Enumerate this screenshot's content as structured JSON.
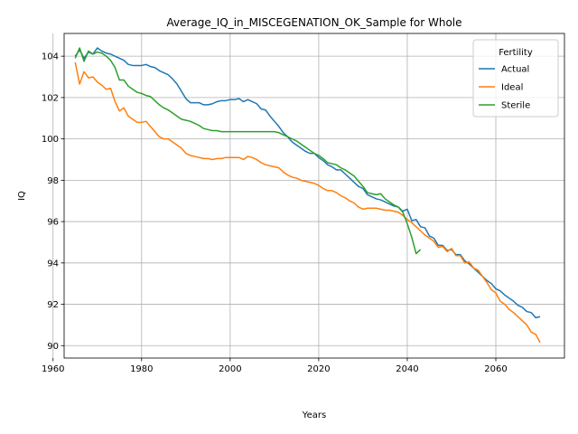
{
  "chart_data": {
    "type": "line",
    "title": "Average_IQ_in_MISCEGENATION_OK_Sample for Whole",
    "xlabel": "Years",
    "ylabel": "IQ",
    "xlim": [
      1962.5,
      2075.5
    ],
    "ylim": [
      89.4,
      105.1
    ],
    "xticks": [
      1960,
      1980,
      2000,
      2020,
      2040,
      2060
    ],
    "yticks": [
      90,
      92,
      94,
      96,
      98,
      100,
      102,
      104
    ],
    "grid": true,
    "legend": {
      "title": "Fertility",
      "placement": "top-right"
    },
    "series": [
      {
        "name": "Actual",
        "color": "#1f77b4",
        "x": [
          1965,
          1966,
          1967,
          1968,
          1969,
          1970,
          1971,
          1972,
          1973,
          1974,
          1975,
          1976,
          1977,
          1978,
          1979,
          1980,
          1981,
          1982,
          1983,
          1984,
          1985,
          1986,
          1987,
          1988,
          1989,
          1990,
          1991,
          1992,
          1993,
          1994,
          1995,
          1996,
          1997,
          1998,
          1999,
          2000,
          2001,
          2002,
          2003,
          2004,
          2005,
          2006,
          2007,
          2008,
          2009,
          2010,
          2011,
          2012,
          2013,
          2014,
          2015,
          2016,
          2017,
          2018,
          2019,
          2020,
          2021,
          2022,
          2023,
          2024,
          2025,
          2026,
          2027,
          2028,
          2029,
          2030,
          2031,
          2032,
          2033,
          2034,
          2035,
          2036,
          2037,
          2038,
          2039,
          2040,
          2041,
          2042,
          2043,
          2044,
          2045,
          2046,
          2047,
          2048,
          2049,
          2050,
          2051,
          2052,
          2053,
          2054,
          2055,
          2056,
          2057,
          2058,
          2059,
          2060,
          2061,
          2062,
          2063,
          2064,
          2065,
          2066,
          2067,
          2068,
          2069,
          2070
        ],
        "y": [
          104.0,
          104.3,
          103.9,
          104.2,
          104.1,
          104.4,
          104.25,
          104.15,
          104.1,
          104.0,
          103.9,
          103.8,
          103.6,
          103.55,
          103.55,
          103.55,
          103.6,
          103.5,
          103.45,
          103.3,
          103.2,
          103.1,
          102.9,
          102.65,
          102.3,
          101.95,
          101.75,
          101.75,
          101.75,
          101.65,
          101.65,
          101.7,
          101.8,
          101.85,
          101.85,
          101.9,
          101.9,
          101.95,
          101.8,
          101.9,
          101.8,
          101.7,
          101.45,
          101.4,
          101.1,
          100.85,
          100.6,
          100.3,
          100.1,
          99.85,
          99.7,
          99.55,
          99.4,
          99.3,
          99.3,
          99.1,
          98.95,
          98.75,
          98.65,
          98.5,
          98.5,
          98.3,
          98.1,
          97.9,
          97.7,
          97.6,
          97.3,
          97.2,
          97.1,
          97.05,
          96.95,
          96.85,
          96.75,
          96.7,
          96.5,
          96.6,
          96.05,
          96.1,
          95.75,
          95.7,
          95.3,
          95.2,
          94.85,
          94.85,
          94.6,
          94.65,
          94.4,
          94.4,
          94.1,
          93.95,
          93.75,
          93.55,
          93.35,
          93.15,
          93.0,
          92.75,
          92.65,
          92.45,
          92.3,
          92.15,
          91.95,
          91.85,
          91.65,
          91.6,
          91.35,
          91.4
        ]
      },
      {
        "name": "Ideal",
        "color": "#ff7f0e",
        "x": [
          1965,
          1966,
          1967,
          1968,
          1969,
          1970,
          1971,
          1972,
          1973,
          1974,
          1975,
          1976,
          1977,
          1978,
          1979,
          1980,
          1981,
          1982,
          1983,
          1984,
          1985,
          1986,
          1987,
          1988,
          1989,
          1990,
          1991,
          1992,
          1993,
          1994,
          1995,
          1996,
          1997,
          1998,
          1999,
          2000,
          2001,
          2002,
          2003,
          2004,
          2005,
          2006,
          2007,
          2008,
          2009,
          2010,
          2011,
          2012,
          2013,
          2014,
          2015,
          2016,
          2017,
          2018,
          2019,
          2020,
          2021,
          2022,
          2023,
          2024,
          2025,
          2026,
          2027,
          2028,
          2029,
          2030,
          2031,
          2032,
          2033,
          2034,
          2035,
          2036,
          2037,
          2038,
          2039,
          2040,
          2041,
          2042,
          2043,
          2044,
          2045,
          2046,
          2047,
          2048,
          2049,
          2050,
          2051,
          2052,
          2053,
          2054,
          2055,
          2056,
          2057,
          2058,
          2059,
          2060,
          2061,
          2062,
          2063,
          2064,
          2065,
          2066,
          2067,
          2068,
          2069,
          2070
        ],
        "y": [
          103.7,
          102.65,
          103.25,
          102.95,
          103.0,
          102.75,
          102.6,
          102.4,
          102.45,
          101.8,
          101.35,
          101.5,
          101.1,
          100.95,
          100.8,
          100.8,
          100.85,
          100.6,
          100.35,
          100.1,
          100.0,
          100.0,
          99.85,
          99.7,
          99.55,
          99.3,
          99.2,
          99.15,
          99.1,
          99.05,
          99.05,
          99.0,
          99.05,
          99.05,
          99.1,
          99.1,
          99.1,
          99.1,
          99.0,
          99.15,
          99.1,
          99.0,
          98.85,
          98.75,
          98.7,
          98.65,
          98.6,
          98.4,
          98.25,
          98.15,
          98.1,
          98.0,
          97.95,
          97.9,
          97.85,
          97.75,
          97.6,
          97.5,
          97.5,
          97.4,
          97.25,
          97.15,
          97.0,
          96.9,
          96.7,
          96.6,
          96.65,
          96.65,
          96.65,
          96.6,
          96.55,
          96.55,
          96.5,
          96.45,
          96.3,
          96.1,
          95.95,
          95.75,
          95.55,
          95.35,
          95.2,
          95.05,
          94.75,
          94.8,
          94.55,
          94.7,
          94.35,
          94.35,
          94.0,
          94.05,
          93.75,
          93.65,
          93.35,
          93.05,
          92.7,
          92.55,
          92.15,
          92.0,
          91.75,
          91.6,
          91.4,
          91.2,
          91.0,
          90.65,
          90.55,
          90.15
        ]
      },
      {
        "name": "Sterile",
        "color": "#2ca02c",
        "x": [
          1965,
          1966,
          1967,
          1968,
          1969,
          1970,
          1971,
          1972,
          1973,
          1974,
          1975,
          1976,
          1977,
          1978,
          1979,
          1980,
          1981,
          1982,
          1983,
          1984,
          1985,
          1986,
          1987,
          1988,
          1989,
          1990,
          1991,
          1992,
          1993,
          1994,
          1995,
          1996,
          1997,
          1998,
          1999,
          2000,
          2001,
          2002,
          2003,
          2004,
          2005,
          2006,
          2007,
          2008,
          2009,
          2010,
          2011,
          2012,
          2013,
          2014,
          2015,
          2016,
          2017,
          2018,
          2019,
          2020,
          2021,
          2022,
          2023,
          2024,
          2025,
          2026,
          2027,
          2028,
          2029,
          2030,
          2031,
          2032,
          2033,
          2034,
          2035,
          2036,
          2037,
          2038,
          2039,
          2040,
          2041,
          2042,
          2043
        ],
        "y": [
          103.9,
          104.4,
          103.75,
          104.25,
          104.1,
          104.2,
          104.15,
          104.0,
          103.8,
          103.45,
          102.85,
          102.85,
          102.55,
          102.4,
          102.25,
          102.2,
          102.1,
          102.05,
          101.85,
          101.65,
          101.5,
          101.4,
          101.25,
          101.1,
          100.95,
          100.9,
          100.85,
          100.75,
          100.65,
          100.5,
          100.45,
          100.4,
          100.4,
          100.35,
          100.35,
          100.35,
          100.35,
          100.35,
          100.35,
          100.35,
          100.35,
          100.35,
          100.35,
          100.35,
          100.35,
          100.35,
          100.3,
          100.2,
          100.1,
          100.0,
          99.9,
          99.75,
          99.6,
          99.45,
          99.3,
          99.2,
          99.05,
          98.85,
          98.8,
          98.75,
          98.6,
          98.5,
          98.35,
          98.2,
          97.95,
          97.7,
          97.4,
          97.35,
          97.3,
          97.35,
          97.1,
          96.95,
          96.8,
          96.7,
          96.45,
          95.9,
          95.25,
          94.45,
          94.65
        ]
      }
    ]
  }
}
